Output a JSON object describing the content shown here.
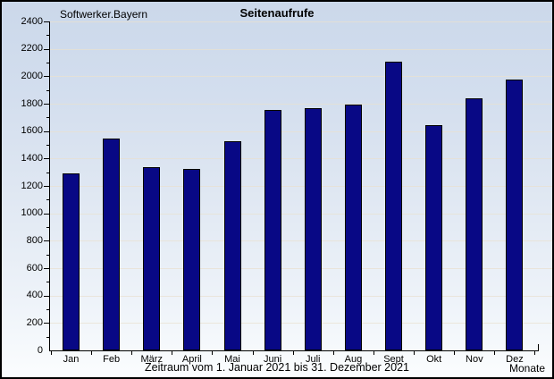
{
  "chart_data": {
    "type": "bar",
    "brand": "Softwerker.Bayern",
    "title": "Seitenaufrufe",
    "caption": "Zeitraum vom 1. Januar 2021 bis 31. Dezember 2021",
    "xlabel": "Monate",
    "categories": [
      "Jan",
      "Feb",
      "März",
      "April",
      "Mai",
      "Juni",
      "Juli",
      "Aug",
      "Sept",
      "Okt",
      "Nov",
      "Dez"
    ],
    "values": [
      1290,
      1545,
      1340,
      1325,
      1525,
      1755,
      1770,
      1795,
      2105,
      1645,
      1840,
      1975
    ],
    "ylim": [
      0,
      2400
    ],
    "ytick_major": 200,
    "ytick_minor": 100,
    "grid": "horizontal-major-only",
    "legend": "none",
    "colors": {
      "bar_fill": "#080885",
      "bar_border": "#000000",
      "grid_line": "#e8e0d0",
      "background_top": "#cbd8ea",
      "background_bottom": "#fbfdfe",
      "text": "#000000"
    }
  }
}
